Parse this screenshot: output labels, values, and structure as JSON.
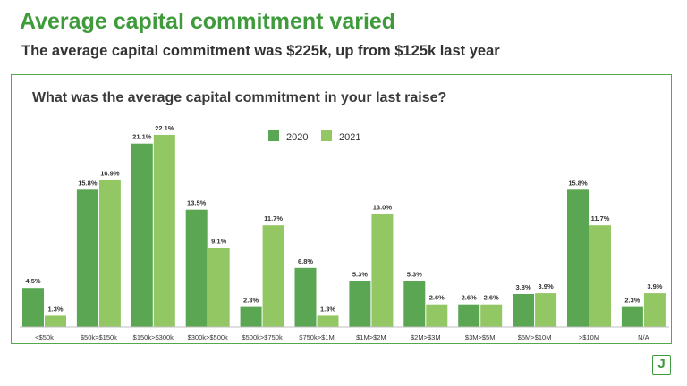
{
  "header": {
    "title": "Average capital commitment varied",
    "subtitle": "The average capital commitment was $225k, up from $125k last year"
  },
  "logo": {
    "letter": "J"
  },
  "colors": {
    "series_2020": "#5aa653",
    "series_2021": "#93c764",
    "accent": "#3e9a3a"
  },
  "chart_data": {
    "type": "bar",
    "title": "What was the average capital commitment in your last raise?",
    "categories": [
      "<$50k",
      "$50k>$150k",
      "$150k>$300k",
      "$300k>$500k",
      "$500k>$750k",
      "$750k>$1M",
      "$1M>$2M",
      "$2M>$3M",
      "$3M>$5M",
      "$5M>$10M",
      ">$10M",
      "N/A"
    ],
    "series": [
      {
        "name": "2020",
        "values": [
          4.5,
          15.8,
          21.1,
          13.5,
          2.3,
          6.8,
          5.3,
          5.3,
          2.6,
          3.8,
          15.8,
          2.3
        ],
        "labels": [
          "4.5%",
          "15.8%",
          "21.1%",
          "13.5%",
          "2.3%",
          "6.8%",
          "5.3%",
          "5.3%",
          "2.6%",
          "3.8%",
          "15.8%",
          "2.3%"
        ]
      },
      {
        "name": "2021",
        "values": [
          1.3,
          16.9,
          22.1,
          9.1,
          11.7,
          1.3,
          13.0,
          2.6,
          2.6,
          3.9,
          11.7,
          3.9
        ],
        "labels": [
          "1.3%",
          "16.9%",
          "22.1%",
          "9.1%",
          "11.7%",
          "1.3%",
          "13.0%",
          "2.6%",
          "2.6%",
          "3.9%",
          "11.7%",
          "3.9%"
        ]
      }
    ],
    "ylim": [
      0,
      22.1
    ],
    "grid": false,
    "legend": "top-center"
  }
}
